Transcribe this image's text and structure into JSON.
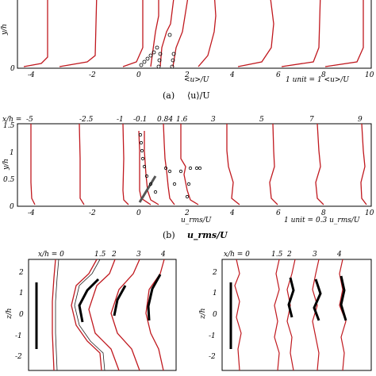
{
  "panel_a": {
    "caption_tag": "(a)",
    "caption_text": "⟨u⟩/U",
    "xlabel": "<u>/U",
    "ylabel": "y/h",
    "unit_note": "1 unit = 1 <u>/U",
    "xticks": [
      "-4",
      "-2",
      "0",
      "2",
      "4",
      "6",
      "8",
      "10"
    ],
    "yticks": [
      "0"
    ]
  },
  "panel_b": {
    "caption_tag": "(b)",
    "caption_text": "u_rms/U",
    "xlabel": "u_rms/U",
    "ylabel": "y/h",
    "unit_note": "1 unit = 0.3 u_rms/U",
    "xticks": [
      "-4",
      "-2",
      "0",
      "2",
      "4",
      "6",
      "8",
      "10"
    ],
    "yticks": [
      "1.5",
      "1",
      "0.5",
      "0"
    ],
    "station_prefix": "x/h =",
    "stations": [
      "-5",
      "-2.5",
      "-1",
      "-0.1",
      "0.84",
      "1.6",
      "3",
      "5",
      "7",
      "9"
    ]
  },
  "panel_c": {
    "ylabel": "z/h",
    "yticks": [
      "2",
      "1",
      "0",
      "-1",
      "-2"
    ],
    "station_prefix": "x/h = 0",
    "stations": [
      "1.5",
      "2",
      "3",
      "4"
    ]
  },
  "panel_d": {
    "ylabel": "z/h",
    "yticks": [
      "2",
      "1",
      "0",
      "-1",
      "-2"
    ],
    "station_prefix": "x/h = 0",
    "stations": [
      "1.5",
      "2",
      "3",
      "4"
    ]
  },
  "colors": {
    "profile": "#c0181e",
    "experiment": "#000000",
    "axis": "#000000"
  }
}
